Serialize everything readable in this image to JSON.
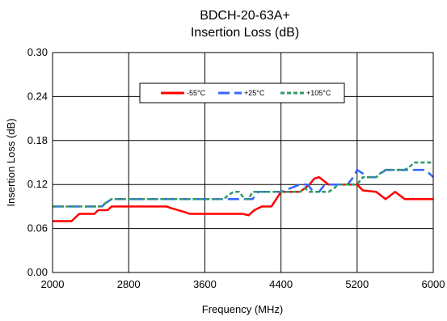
{
  "chart_data": {
    "type": "line",
    "title": "BDCH-20-63A+",
    "subtitle": "Insertion Loss (dB)",
    "xlabel": "Frequency (MHz)",
    "ylabel": "Insertion Loss (dB)",
    "xlim": [
      2000,
      6000
    ],
    "ylim": [
      0,
      0.3
    ],
    "xticks": [
      "2000",
      "2800",
      "3600",
      "4400",
      "5200",
      "6000"
    ],
    "yticks": [
      "0.00",
      "0.06",
      "0.12",
      "0.18",
      "0.24",
      "0.30"
    ],
    "grid": true,
    "legend_position": "top-center",
    "series": [
      {
        "name": "-55°C",
        "color": "#ff0000",
        "dash": "solid",
        "x": [
          2000,
          2200,
          2240,
          2280,
          2440,
          2480,
          2580,
          2620,
          2660,
          3000,
          3200,
          3240,
          3400,
          3440,
          4000,
          4060,
          4120,
          4200,
          4300,
          4400,
          4600,
          4700,
          4750,
          4800,
          4900,
          5000,
          5200,
          5260,
          5400,
          5450,
          5500,
          5600,
          5650,
          5700,
          5760,
          6000
        ],
        "y": [
          0.07,
          0.07,
          0.075,
          0.08,
          0.08,
          0.085,
          0.085,
          0.09,
          0.09,
          0.09,
          0.09,
          0.088,
          0.082,
          0.08,
          0.08,
          0.078,
          0.085,
          0.09,
          0.09,
          0.11,
          0.11,
          0.12,
          0.128,
          0.13,
          0.12,
          0.12,
          0.12,
          0.112,
          0.11,
          0.105,
          0.1,
          0.11,
          0.105,
          0.1,
          0.1,
          0.1
        ]
      },
      {
        "name": "+25°C",
        "color": "#3366ff",
        "dash": "long-dash",
        "x": [
          2000,
          2520,
          2560,
          2620,
          3800,
          4100,
          4160,
          4300,
          4400,
          4600,
          4680,
          4740,
          4800,
          4860,
          5000,
          5100,
          5160,
          5200,
          5260,
          5300,
          5400,
          5500,
          5600,
          5700,
          5800,
          5900,
          5960,
          6000
        ],
        "y": [
          0.09,
          0.09,
          0.095,
          0.1,
          0.1,
          0.1,
          0.11,
          0.11,
          0.11,
          0.12,
          0.12,
          0.11,
          0.11,
          0.12,
          0.12,
          0.12,
          0.13,
          0.14,
          0.135,
          0.13,
          0.13,
          0.14,
          0.14,
          0.14,
          0.14,
          0.14,
          0.135,
          0.13
        ]
      },
      {
        "name": "+105°C",
        "color": "#339966",
        "dash": "short-dash",
        "x": [
          2000,
          2500,
          2560,
          2620,
          3200,
          3800,
          3840,
          3900,
          3960,
          4020,
          4060,
          4100,
          4300,
          4440,
          4520,
          4600,
          4650,
          4700,
          4800,
          4900,
          4960,
          5000,
          5100,
          5200,
          5260,
          5300,
          5400,
          5440,
          5500,
          5600,
          5700,
          5760,
          5800,
          6000
        ],
        "y": [
          0.09,
          0.09,
          0.095,
          0.1,
          0.1,
          0.1,
          0.105,
          0.11,
          0.11,
          0.1,
          0.1,
          0.11,
          0.11,
          0.11,
          0.11,
          0.11,
          0.115,
          0.11,
          0.11,
          0.11,
          0.115,
          0.12,
          0.12,
          0.12,
          0.13,
          0.13,
          0.13,
          0.135,
          0.14,
          0.14,
          0.14,
          0.145,
          0.15,
          0.15
        ]
      }
    ]
  }
}
